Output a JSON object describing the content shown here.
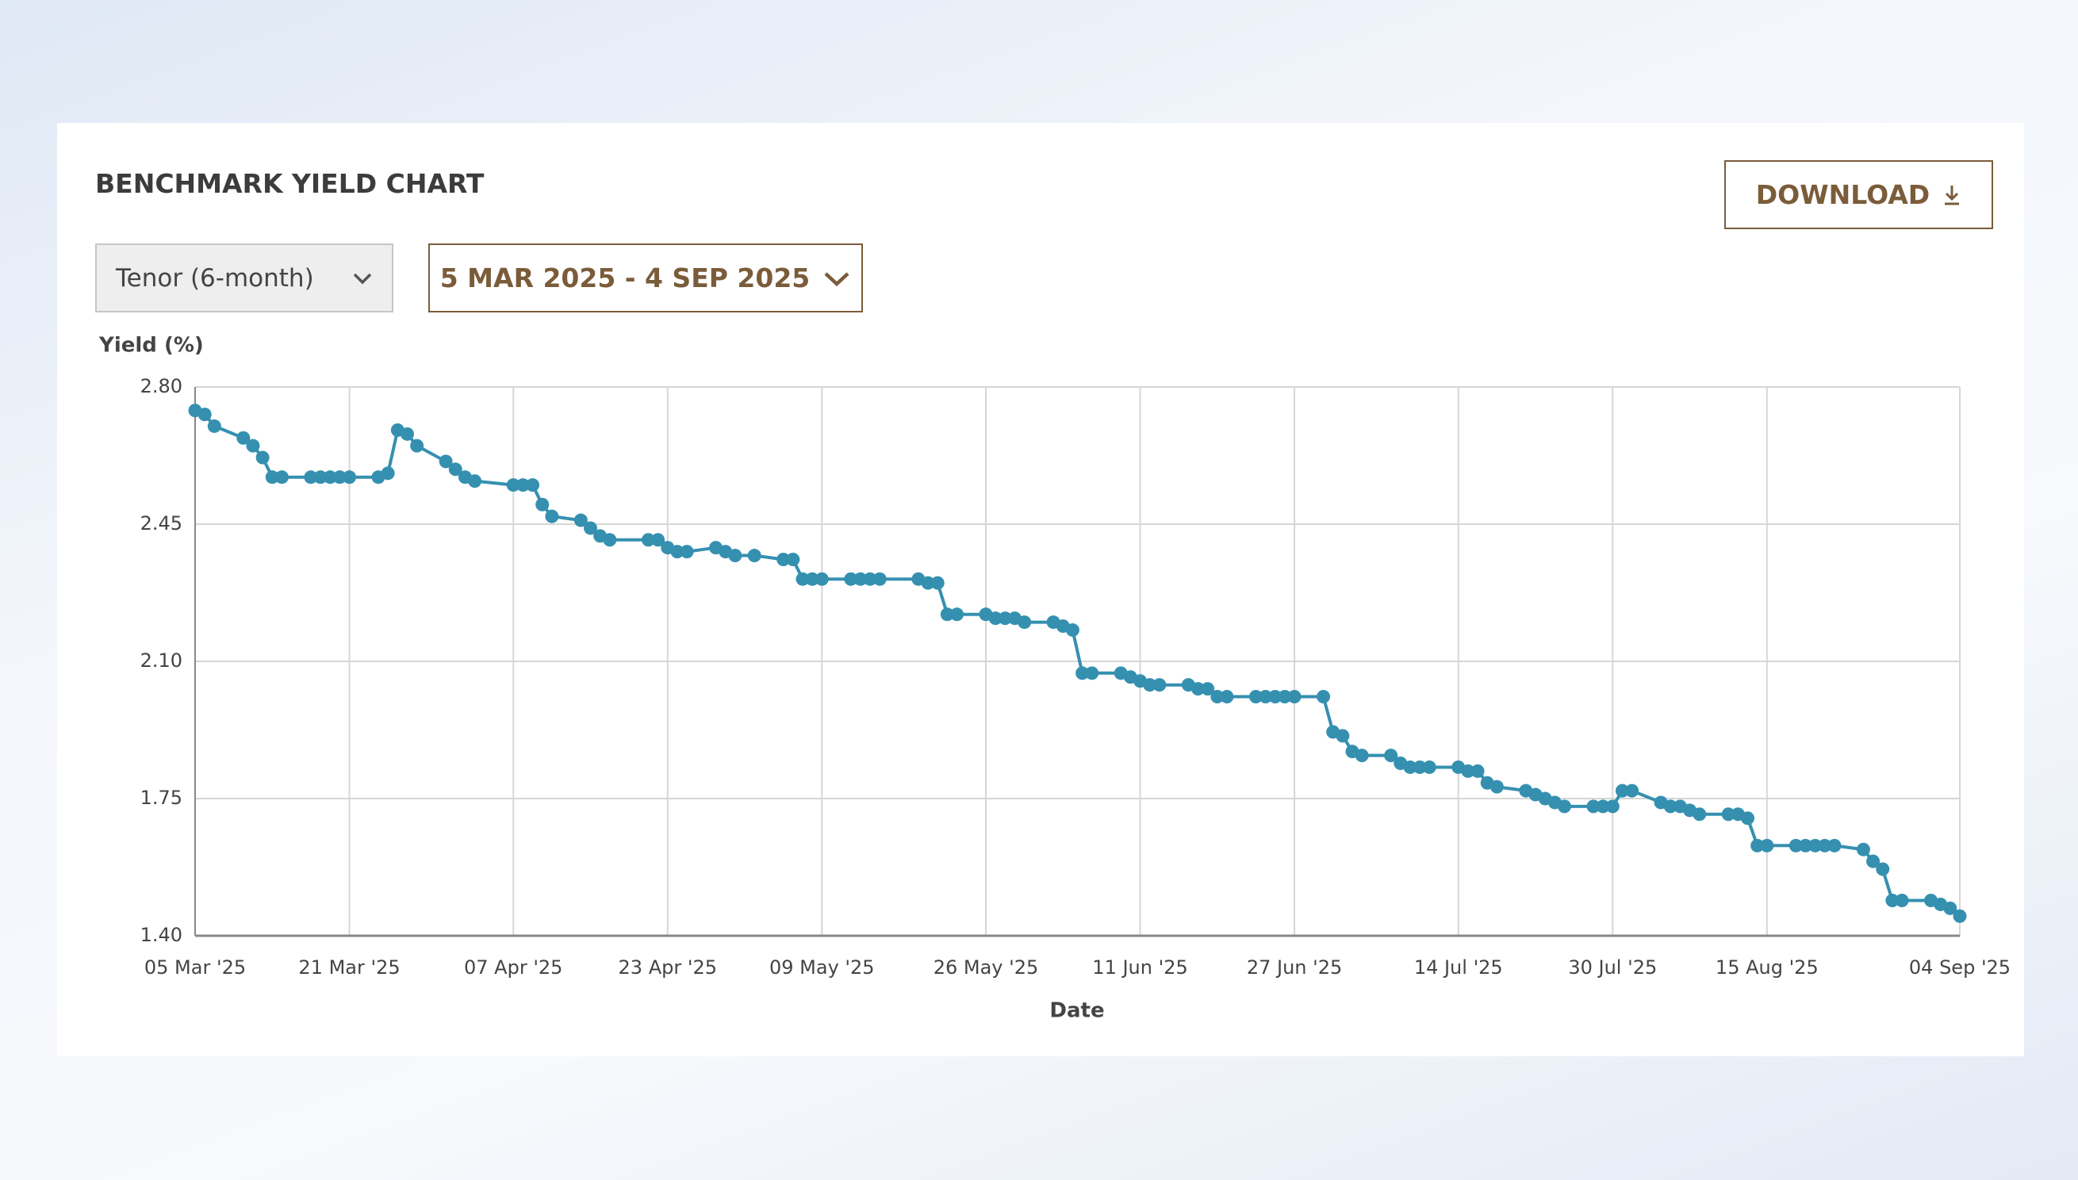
{
  "header": {
    "title": "BENCHMARK YIELD CHART",
    "download": "DOWNLOAD"
  },
  "controls": {
    "tenor": "Tenor (6-month)",
    "date_range": "5 MAR 2025 - 4 SEP 2025"
  },
  "chart_data": {
    "type": "line",
    "y_label": "Yield (%)",
    "x_label": "Date",
    "color": "#3590b0",
    "grid": true,
    "xlim": [
      "2025-03-05",
      "2025-09-04"
    ],
    "xticks": [
      {
        "value": "2025-03-05",
        "label": "05 Mar '25"
      },
      {
        "value": "2025-03-21",
        "label": "21 Mar '25"
      },
      {
        "value": "2025-04-07",
        "label": "07 Apr '25"
      },
      {
        "value": "2025-04-23",
        "label": "23 Apr '25"
      },
      {
        "value": "2025-05-09",
        "label": "09 May '25"
      },
      {
        "value": "2025-05-26",
        "label": "26 May '25"
      },
      {
        "value": "2025-06-11",
        "label": "11 Jun '25"
      },
      {
        "value": "2025-06-27",
        "label": "27 Jun '25"
      },
      {
        "value": "2025-07-14",
        "label": "14 Jul '25"
      },
      {
        "value": "2025-07-30",
        "label": "30 Jul '25"
      },
      {
        "value": "2025-08-15",
        "label": "15 Aug '25"
      },
      {
        "value": "2025-09-04",
        "label": "04 Sep '25"
      }
    ],
    "ylim": [
      1.4,
      2.8
    ],
    "yticks": [
      {
        "value": 1.4,
        "label": "1.40"
      },
      1.75,
      {
        "value": 2.1,
        "label": "2.10"
      },
      2.45,
      {
        "value": 2.8,
        "label": "2.80"
      }
    ],
    "x": [
      "2025-03-05",
      "2025-03-06",
      "2025-03-07",
      "2025-03-10",
      "2025-03-11",
      "2025-03-12",
      "2025-03-13",
      "2025-03-14",
      "2025-03-17",
      "2025-03-18",
      "2025-03-19",
      "2025-03-20",
      "2025-03-21",
      "2025-03-24",
      "2025-03-25",
      "2025-03-26",
      "2025-03-27",
      "2025-03-28",
      "2025-03-31",
      "2025-04-01",
      "2025-04-02",
      "2025-04-03",
      "2025-04-07",
      "2025-04-08",
      "2025-04-09",
      "2025-04-10",
      "2025-04-11",
      "2025-04-14",
      "2025-04-15",
      "2025-04-16",
      "2025-04-17",
      "2025-04-21",
      "2025-04-22",
      "2025-04-23",
      "2025-04-24",
      "2025-04-25",
      "2025-04-28",
      "2025-04-29",
      "2025-04-30",
      "2025-05-02",
      "2025-05-05",
      "2025-05-06",
      "2025-05-07",
      "2025-05-08",
      "2025-05-09",
      "2025-05-12",
      "2025-05-13",
      "2025-05-14",
      "2025-05-15",
      "2025-05-19",
      "2025-05-20",
      "2025-05-21",
      "2025-05-22",
      "2025-05-23",
      "2025-05-26",
      "2025-05-27",
      "2025-05-28",
      "2025-05-29",
      "2025-05-30",
      "2025-06-02",
      "2025-06-03",
      "2025-06-04",
      "2025-06-05",
      "2025-06-06",
      "2025-06-09",
      "2025-06-10",
      "2025-06-11",
      "2025-06-12",
      "2025-06-13",
      "2025-06-16",
      "2025-06-17",
      "2025-06-18",
      "2025-06-19",
      "2025-06-20",
      "2025-06-23",
      "2025-06-24",
      "2025-06-25",
      "2025-06-26",
      "2025-06-27",
      "2025-06-30",
      "2025-07-01",
      "2025-07-02",
      "2025-07-03",
      "2025-07-04",
      "2025-07-07",
      "2025-07-08",
      "2025-07-09",
      "2025-07-10",
      "2025-07-11",
      "2025-07-14",
      "2025-07-15",
      "2025-07-16",
      "2025-07-17",
      "2025-07-18",
      "2025-07-21",
      "2025-07-22",
      "2025-07-23",
      "2025-07-24",
      "2025-07-25",
      "2025-07-28",
      "2025-07-29",
      "2025-07-30",
      "2025-07-31",
      "2025-08-01",
      "2025-08-04",
      "2025-08-05",
      "2025-08-06",
      "2025-08-07",
      "2025-08-08",
      "2025-08-11",
      "2025-08-12",
      "2025-08-13",
      "2025-08-14",
      "2025-08-15",
      "2025-08-18",
      "2025-08-19",
      "2025-08-20",
      "2025-08-21",
      "2025-08-22",
      "2025-08-25",
      "2025-08-26",
      "2025-08-27",
      "2025-08-28",
      "2025-08-29",
      "2025-09-01",
      "2025-09-02",
      "2025-09-03",
      "2025-09-04"
    ],
    "values": [
      2.74,
      2.73,
      2.7,
      2.67,
      2.65,
      2.62,
      2.57,
      2.57,
      2.57,
      2.57,
      2.57,
      2.57,
      2.57,
      2.57,
      2.58,
      2.69,
      2.68,
      2.65,
      2.61,
      2.59,
      2.57,
      2.56,
      2.55,
      2.55,
      2.55,
      2.5,
      2.47,
      2.46,
      2.44,
      2.42,
      2.41,
      2.41,
      2.41,
      2.39,
      2.38,
      2.38,
      2.39,
      2.38,
      2.37,
      2.37,
      2.36,
      2.36,
      2.31,
      2.31,
      2.31,
      2.31,
      2.31,
      2.31,
      2.31,
      2.31,
      2.3,
      2.3,
      2.22,
      2.22,
      2.22,
      2.21,
      2.21,
      2.21,
      2.2,
      2.2,
      2.19,
      2.18,
      2.07,
      2.07,
      2.07,
      2.06,
      2.05,
      2.04,
      2.04,
      2.04,
      2.03,
      2.03,
      2.01,
      2.01,
      2.01,
      2.01,
      2.01,
      2.01,
      2.01,
      2.01,
      1.92,
      1.91,
      1.87,
      1.86,
      1.86,
      1.84,
      1.83,
      1.83,
      1.83,
      1.83,
      1.82,
      1.82,
      1.79,
      1.78,
      1.77,
      1.76,
      1.75,
      1.74,
      1.73,
      1.73,
      1.73,
      1.73,
      1.77,
      1.77,
      1.74,
      1.73,
      1.73,
      1.72,
      1.71,
      1.71,
      1.71,
      1.7,
      1.63,
      1.63,
      1.63,
      1.63,
      1.63,
      1.63,
      1.63,
      1.62,
      1.59,
      1.57,
      1.49,
      1.49,
      1.49,
      1.48,
      1.47,
      1.45
    ]
  }
}
